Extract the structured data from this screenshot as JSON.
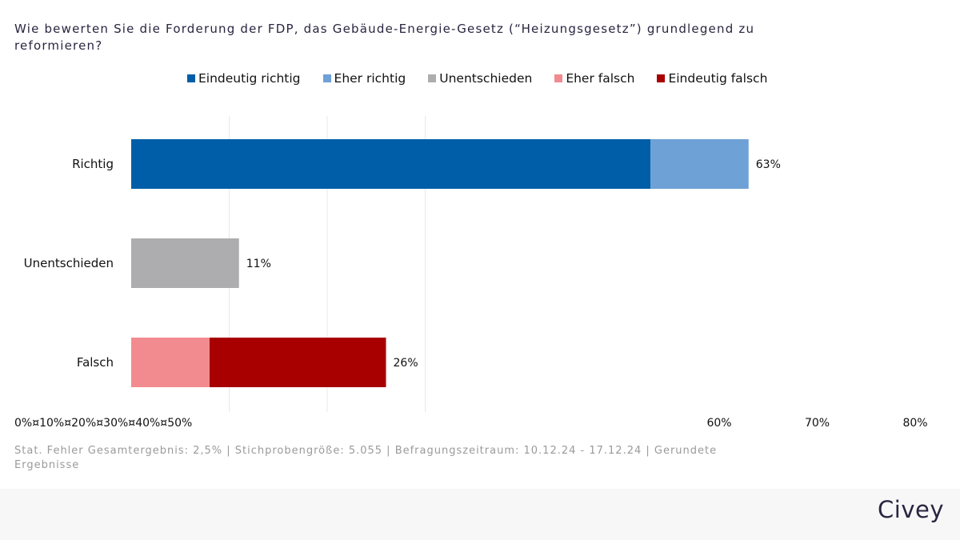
{
  "title": "Wie bewerten Sie die Forderung der FDP, das Gebäude-Energie-Gesetz (“Heizungsgesetz”) grundlegend zu reformieren?",
  "legend": [
    {
      "name": "Eindeutig richtig",
      "color": "#005ea8"
    },
    {
      "name": "Eher richtig",
      "color": "#6ea1d6"
    },
    {
      "name": "Unentschieden",
      "color": "#adadaf"
    },
    {
      "name": "Eher falsch",
      "color": "#f28b8f"
    },
    {
      "name": "Eindeutig falsch",
      "color": "#a80000"
    }
  ],
  "chart_data": {
    "type": "bar",
    "orientation": "horizontal",
    "stacked": true,
    "categories": [
      "Richtig",
      "Unentschieden",
      "Falsch"
    ],
    "series": [
      {
        "name": "Eindeutig richtig",
        "values": [
          53,
          0,
          0
        ]
      },
      {
        "name": "Eher richtig",
        "values": [
          10,
          0,
          0
        ]
      },
      {
        "name": "Unentschieden",
        "values": [
          0,
          11,
          0
        ]
      },
      {
        "name": "Eher falsch",
        "values": [
          0,
          0,
          8
        ]
      },
      {
        "name": "Eindeutig falsch",
        "values": [
          0,
          0,
          18
        ]
      }
    ],
    "totals_labels": [
      "63%",
      "11%",
      "26%"
    ],
    "xlim": [
      0,
      80
    ],
    "x_tick_labels": [
      "0%¤10%¤20%¤30%¤40%¤50%",
      "60%",
      "70%",
      "80%"
    ],
    "grid": true
  },
  "footer": "Stat. Fehler Gesamtergebnis: 2,5% | Stichprobengröße: 5.055 | Befragungszeitraum: 10.12.24 - 17.12.24 | Gerundete Ergebnisse",
  "brand": "Civey"
}
